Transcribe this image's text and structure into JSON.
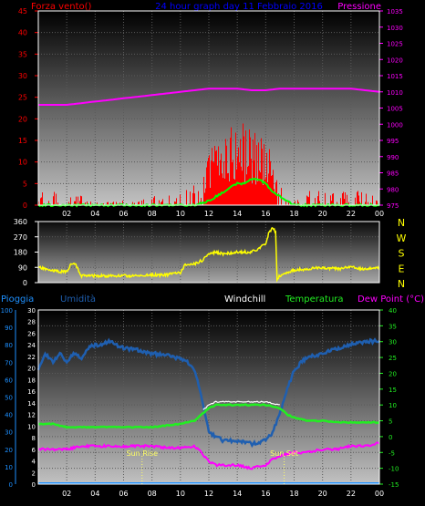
{
  "header": {
    "left_title": "Forza vento()",
    "center_title": "24 hour graph day  11 Febbraio 2016",
    "right_title": "Pressione"
  },
  "colors": {
    "background": "#000000",
    "wind": "#ff0000",
    "wind_avg": "#00ff00",
    "pressure": "#ff00ff",
    "direction": "#ffff00",
    "temperature": "#22ee22",
    "dewpoint": "#ff00ff",
    "humidity": "#1f5fb0",
    "rain": "#1e90ff",
    "title_blue": "#0000ff",
    "axis_label": "#ffffff"
  },
  "chart_data": [
    {
      "type": "line",
      "title": "24 hour graph day  11 Febbraio 2016",
      "x_ticks": [
        "02",
        "04",
        "06",
        "08",
        "10",
        "12",
        "14",
        "16",
        "18",
        "20",
        "22",
        "00"
      ],
      "left_axis": {
        "label": "Forza vento()",
        "ylim": [
          0,
          45
        ],
        "ticks": [
          0,
          5,
          10,
          15,
          20,
          25,
          30,
          35,
          40,
          45
        ]
      },
      "right_axis": {
        "label": "Pressione",
        "ylim": [
          975,
          1035
        ],
        "ticks": [
          975,
          980,
          985,
          990,
          995,
          1000,
          1005,
          1010,
          1015,
          1020,
          1025,
          1030,
          1035
        ]
      },
      "series": [
        {
          "name": "Pressione",
          "axis": "right",
          "x": [
            0,
            1,
            2,
            3,
            4,
            5,
            6,
            7,
            8,
            9,
            10,
            11,
            12,
            13,
            14,
            15,
            16,
            17,
            18,
            19,
            20,
            21,
            22,
            23,
            24
          ],
          "values": [
            1006,
            1006,
            1006,
            1006.5,
            1007,
            1007.5,
            1008,
            1008.5,
            1009,
            1009.5,
            1010,
            1010.5,
            1011,
            1011,
            1011,
            1010.5,
            1010.5,
            1011,
            1011,
            1011,
            1011,
            1011,
            1011,
            1010.5,
            1010
          ]
        }
      ],
      "wind_gust_profile": {
        "x": [
          0,
          1,
          2,
          3,
          4,
          5,
          6,
          7,
          8,
          9,
          10,
          10.5,
          11,
          11.5,
          12,
          12.5,
          13,
          13.5,
          14,
          14.5,
          15,
          15.5,
          16,
          16.5,
          17,
          17.5,
          18,
          19,
          20,
          21,
          22,
          23,
          24
        ],
        "values": [
          3,
          3,
          2,
          2,
          2,
          1,
          1,
          1,
          2,
          2,
          3,
          4,
          5,
          5,
          10,
          12,
          14,
          14,
          15,
          15,
          14,
          14,
          12,
          8,
          4,
          3,
          3,
          3,
          3,
          3,
          3,
          3,
          1
        ]
      },
      "wind_avg_profile": {
        "x": [
          0,
          10,
          11,
          12,
          12.5,
          13,
          13.5,
          14,
          14.5,
          15,
          15.5,
          16,
          16.5,
          17,
          17.5,
          18,
          24
        ],
        "values": [
          0,
          0,
          0,
          1,
          2,
          3,
          4,
          5,
          5,
          6,
          6,
          5,
          3,
          2,
          1,
          0,
          0
        ]
      }
    },
    {
      "type": "line",
      "left_axis": {
        "ylim": [
          0,
          360
        ],
        "ticks": [
          0,
          90,
          180,
          270,
          360
        ]
      },
      "right_labels": [
        "N",
        "W",
        "S",
        "E",
        "N"
      ],
      "series": [
        {
          "name": "Direzione",
          "x": [
            0,
            0.5,
            1,
            1.5,
            2,
            2.3,
            2.6,
            3,
            4,
            5,
            6,
            7,
            8,
            9,
            10,
            10.3,
            10.6,
            11,
            11.5,
            12,
            12.5,
            13,
            14,
            15,
            15.5,
            16,
            16.2,
            16.5,
            16.7,
            16.8,
            17,
            18,
            19,
            20,
            21,
            22,
            23,
            24
          ],
          "values": [
            90,
            80,
            70,
            65,
            65,
            110,
            110,
            40,
            40,
            40,
            40,
            40,
            45,
            45,
            60,
            100,
            110,
            110,
            130,
            170,
            180,
            170,
            180,
            180,
            200,
            230,
            290,
            320,
            300,
            20,
            40,
            75,
            80,
            90,
            80,
            90,
            80,
            90
          ]
        }
      ]
    },
    {
      "type": "line",
      "legend": [
        "Pioggia",
        "Umidità",
        "Windchill",
        "Temperatura",
        "Dew Point (°C)"
      ],
      "rain_axis": {
        "ylim": [
          0,
          30
        ],
        "ticks": [
          0,
          2,
          4,
          6,
          8,
          10,
          12,
          14,
          16,
          18,
          20,
          22,
          24,
          26,
          28,
          30
        ]
      },
      "humidity_axis": {
        "ylim": [
          0,
          100
        ],
        "ticks": [
          0,
          10,
          20,
          30,
          40,
          50,
          60,
          70,
          80,
          90,
          100
        ]
      },
      "temp_axis": {
        "ylim": [
          -15,
          40
        ],
        "ticks": [
          -15,
          -10,
          -5,
          0,
          5,
          10,
          15,
          20,
          25,
          30,
          35,
          40
        ]
      },
      "annotations": [
        "Sun Rise",
        "Sun Set"
      ],
      "sun_rise_hour": 7.3,
      "sun_set_hour": 17.3,
      "series": [
        {
          "name": "Umidità",
          "axis": "humidity",
          "x": [
            0,
            0.5,
            1,
            1.5,
            2,
            2.5,
            3,
            3.5,
            4,
            4.5,
            5,
            6,
            7,
            8,
            9,
            10,
            10.5,
            11,
            11.5,
            12,
            12.5,
            13,
            14,
            15,
            16,
            16.5,
            17,
            17.5,
            18,
            18.5,
            19,
            20,
            21,
            22,
            23,
            24
          ],
          "values": [
            65,
            75,
            70,
            75,
            70,
            75,
            72,
            78,
            80,
            80,
            82,
            78,
            77,
            75,
            74,
            72,
            70,
            65,
            50,
            30,
            27,
            25,
            25,
            23,
            25,
            30,
            40,
            55,
            65,
            70,
            73,
            75,
            78,
            80,
            82,
            82
          ]
        },
        {
          "name": "Temperatura",
          "axis": "temp",
          "x": [
            0,
            1,
            2,
            3,
            4,
            5,
            6,
            7,
            8,
            9,
            10,
            11,
            11.5,
            12,
            12.5,
            13,
            14,
            15,
            16,
            17,
            17.5,
            18,
            19,
            20,
            21,
            22,
            23,
            24
          ],
          "values": [
            4,
            4,
            3,
            3,
            3,
            3,
            3,
            3,
            3,
            3.5,
            4,
            5,
            7,
            9,
            10,
            10,
            10,
            10,
            10,
            9,
            7,
            6,
            5,
            5,
            4.5,
            4.5,
            4.5,
            4.5
          ]
        },
        {
          "name": "Windchill",
          "axis": "temp",
          "x": [
            0,
            11,
            11.5,
            12,
            12.5,
            13,
            14,
            15,
            16,
            17,
            17.5,
            24
          ],
          "values": [
            null,
            null,
            8,
            10,
            11,
            11,
            11,
            11,
            11,
            10,
            null,
            null
          ]
        },
        {
          "name": "Dew Point (°C)",
          "axis": "temp",
          "x": [
            0,
            1,
            2,
            3,
            4,
            5,
            6,
            7,
            8,
            9,
            10,
            10.5,
            11,
            11.5,
            12,
            12.5,
            13,
            14,
            15,
            16,
            16.5,
            17,
            18,
            19,
            20,
            21,
            22,
            23,
            24
          ],
          "values": [
            -4,
            -4,
            -4,
            -3,
            -3,
            -3,
            -3,
            -3,
            -3,
            -3.5,
            -3.5,
            -3.5,
            -3,
            -5,
            -8,
            -9,
            -9,
            -9,
            -10,
            -9,
            -7,
            -6,
            -5,
            -5,
            -4,
            -4,
            -3,
            -3,
            -2
          ]
        },
        {
          "name": "Pioggia",
          "axis": "rain",
          "x": [
            0,
            24
          ],
          "values": [
            0,
            0
          ]
        }
      ]
    }
  ]
}
